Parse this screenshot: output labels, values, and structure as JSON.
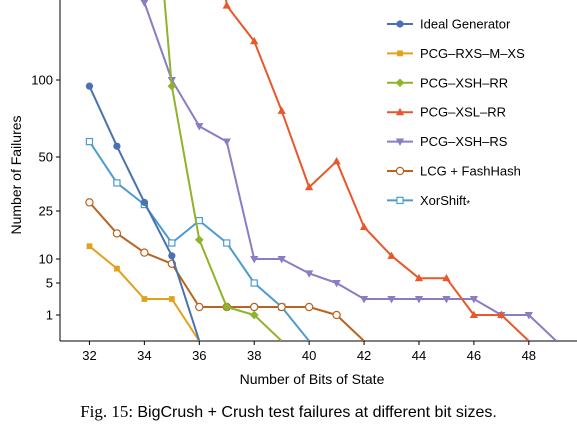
{
  "caption": {
    "label": "Fig. 15:",
    "text": "BigCrush + Crush test failures at different bit sizes."
  },
  "chart_data": {
    "type": "line",
    "xlabel": "Number of Bits of State",
    "ylabel": "Number of Failures",
    "xlim": [
      31,
      49.5
    ],
    "x_ticks": [
      32,
      34,
      36,
      38,
      40,
      42,
      44,
      46,
      48
    ],
    "y_ticks": [
      1,
      5,
      10,
      25,
      50,
      100
    ],
    "y_scale": "compressed (non-linear)",
    "legend_position": "top-right",
    "series": [
      {
        "name": "Ideal Generator",
        "color": "#4a72b0",
        "marker": "circle-filled",
        "points": [
          [
            32,
            96
          ],
          [
            33,
            57
          ],
          [
            34,
            29
          ],
          [
            35,
            11
          ],
          [
            36,
            0
          ]
        ]
      },
      {
        "name": "PCG–RXS–M–XS",
        "color": "#e2a11a",
        "marker": "square-filled",
        "points": [
          [
            32,
            14
          ],
          [
            33,
            8
          ],
          [
            34,
            3
          ],
          [
            35,
            3
          ],
          [
            36,
            0
          ]
        ]
      },
      {
        "name": "PCG–XSH–RR",
        "color": "#8fb32a",
        "marker": "diamond-filled",
        "points": [
          [
            34.5,
            200
          ],
          [
            35,
            96
          ],
          [
            36,
            16
          ],
          [
            37,
            2
          ],
          [
            38,
            1
          ],
          [
            39,
            0
          ]
        ]
      },
      {
        "name": "PCG–XSL–RR",
        "color": "#e8582a",
        "marker": "triangle-up-filled",
        "points": [
          [
            36.7,
            200
          ],
          [
            37,
            148
          ],
          [
            38,
            125
          ],
          [
            39,
            80
          ],
          [
            40,
            36
          ],
          [
            41,
            48
          ],
          [
            42,
            20
          ],
          [
            43,
            11
          ],
          [
            44,
            6
          ],
          [
            45,
            6
          ],
          [
            46,
            1
          ],
          [
            47,
            1
          ],
          [
            48,
            0
          ]
        ]
      },
      {
        "name": "PCG–XSH–RS",
        "color": "#8a7dc4",
        "marker": "triangle-down-filled",
        "points": [
          [
            33.7,
            200
          ],
          [
            34,
            150
          ],
          [
            35,
            100
          ],
          [
            36,
            70
          ],
          [
            37,
            60
          ],
          [
            38,
            10
          ],
          [
            39,
            10
          ],
          [
            40,
            7
          ],
          [
            41,
            5
          ],
          [
            42,
            3
          ],
          [
            43,
            3
          ],
          [
            44,
            3
          ],
          [
            45,
            3
          ],
          [
            46,
            3
          ],
          [
            47,
            1
          ],
          [
            48,
            1
          ],
          [
            49,
            0
          ]
        ]
      },
      {
        "name": "LCG + FashHash",
        "color": "#b86420",
        "marker": "circle-open",
        "points": [
          [
            32,
            29
          ],
          [
            33,
            18
          ],
          [
            34,
            12
          ],
          [
            35,
            9
          ],
          [
            36,
            2
          ],
          [
            37,
            2
          ],
          [
            38,
            2
          ],
          [
            39,
            2
          ],
          [
            40,
            2
          ],
          [
            41,
            1
          ],
          [
            42,
            0
          ]
        ]
      },
      {
        "name": "XorShift*",
        "legend_label": "XorShift",
        "legend_suffix": "*",
        "color": "#4d9bd0",
        "marker": "square-open",
        "points": [
          [
            32,
            60
          ],
          [
            33,
            38
          ],
          [
            34,
            28
          ],
          [
            35,
            15
          ],
          [
            36,
            22
          ],
          [
            37,
            15
          ],
          [
            38,
            5
          ],
          [
            39,
            2
          ],
          [
            40,
            0
          ]
        ]
      }
    ]
  }
}
